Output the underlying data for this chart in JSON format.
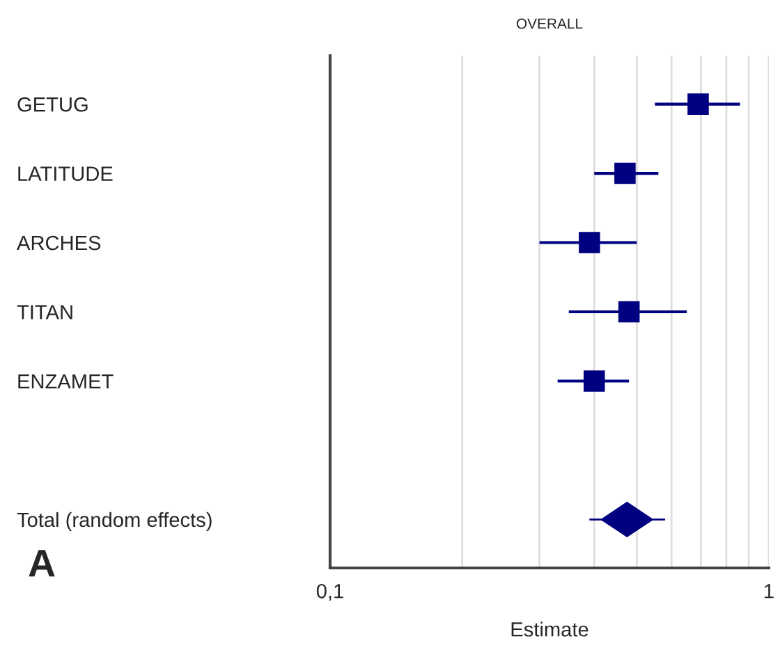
{
  "chart_data": {
    "type": "scatter",
    "orientation": "horizontal",
    "title": "OVERALL",
    "xlabel": "Estimate",
    "categories": [
      "GETUG",
      "LATITUDE",
      "ARCHES",
      "TITAN",
      "ENZAMET",
      null,
      "Total (random effects)"
    ],
    "series": [
      {
        "marker": "square",
        "color": "#000080",
        "values": [
          0.69,
          0.47,
          0.39,
          0.48,
          0.4,
          null,
          null
        ],
        "errors": [
          [
            0.55,
            0.86
          ],
          [
            0.4,
            0.56
          ],
          [
            0.3,
            0.5
          ],
          [
            0.35,
            0.65
          ],
          [
            0.33,
            0.48
          ],
          null,
          null
        ]
      },
      {
        "marker": "diamond",
        "color": "#000080",
        "values": [
          null,
          null,
          null,
          null,
          null,
          null,
          0.475
        ],
        "errors": [
          null,
          null,
          null,
          null,
          null,
          null,
          [
            0.39,
            0.58
          ]
        ]
      }
    ],
    "log": "x",
    "xlim": [
      0.1,
      1
    ],
    "xticks": [
      {
        "value": 0.1,
        "label": "0,1"
      },
      {
        "value": 0.2,
        "label": null
      },
      {
        "value": 0.3,
        "label": null
      },
      {
        "value": 0.4,
        "label": null
      },
      {
        "value": 0.5,
        "label": null
      },
      {
        "value": 0.6,
        "label": null
      },
      {
        "value": 0.7,
        "label": null
      },
      {
        "value": 0.8,
        "label": null
      },
      {
        "value": 0.9,
        "label": null
      },
      {
        "value": 1,
        "label": "1"
      }
    ],
    "grid": "x",
    "legend": false,
    "annotations": [
      "A"
    ]
  }
}
